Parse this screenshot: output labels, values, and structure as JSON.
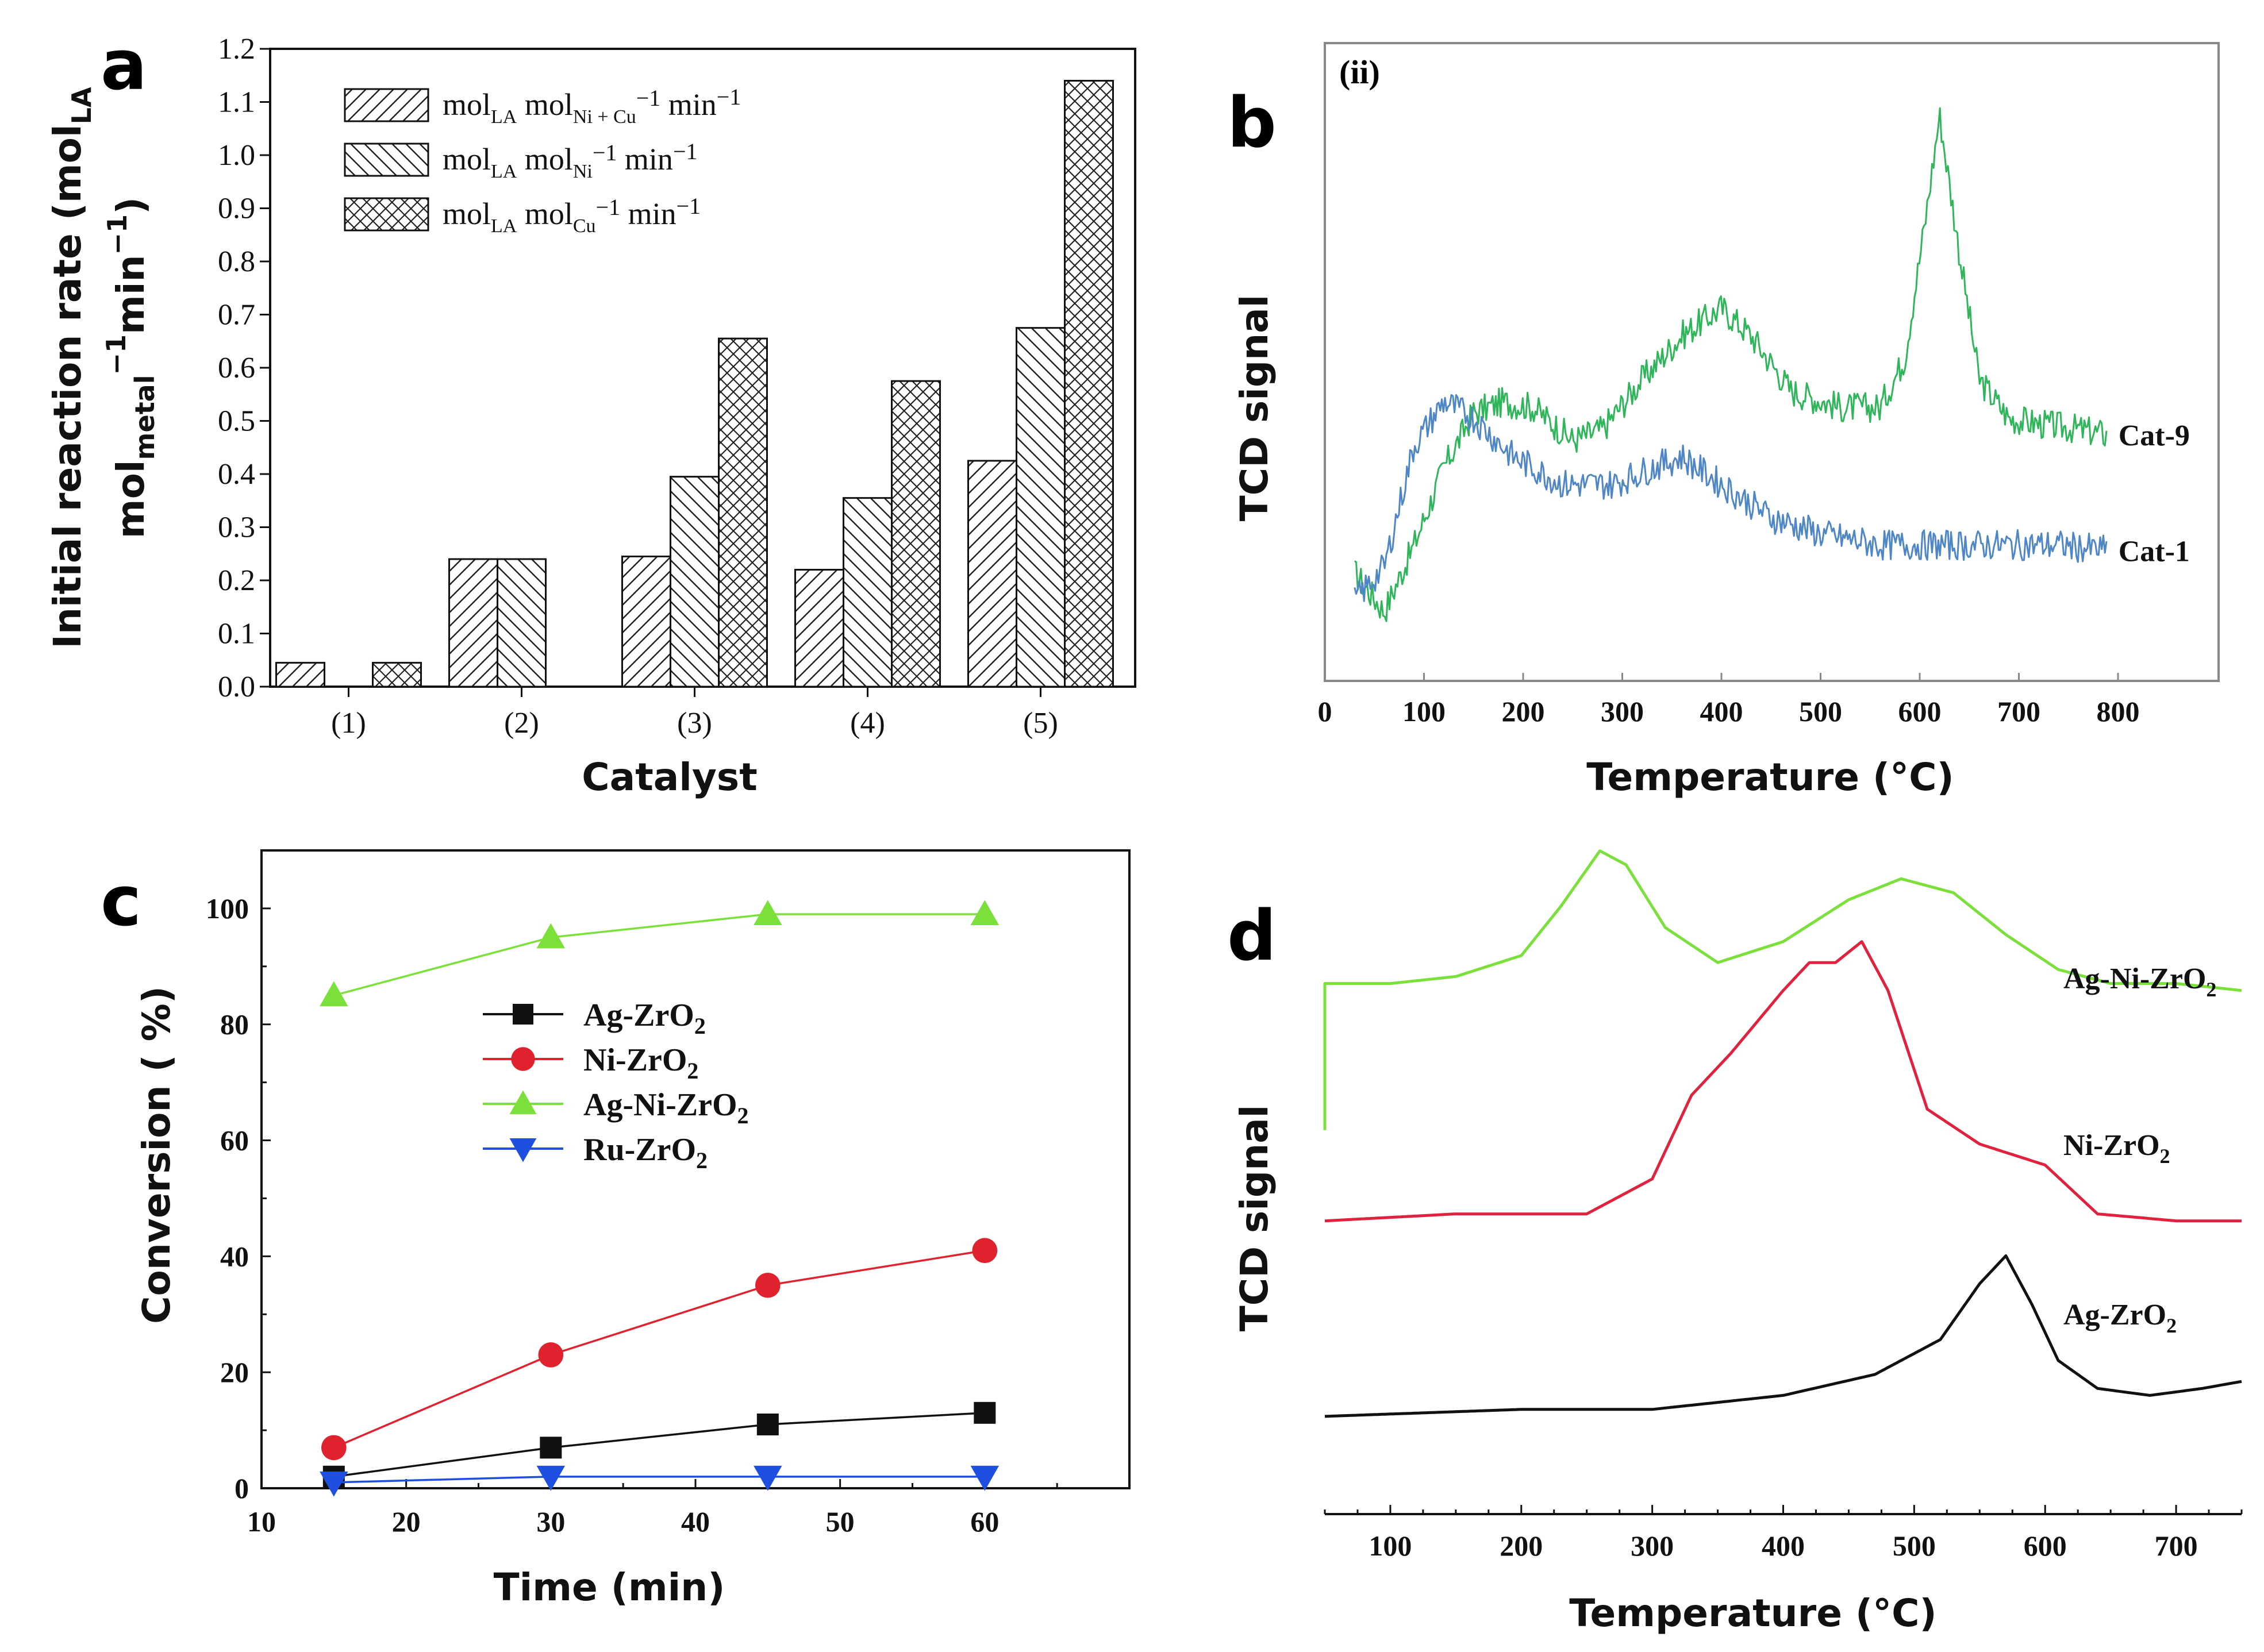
{
  "chart_data": [
    {
      "panel": "a",
      "type": "bar",
      "xlabel": "Catalyst",
      "ylabel_line1": "Initial reaction rate (mol",
      "ylabel_line1_sub": "LA",
      "ylabel_line2_a": "mol",
      "ylabel_line2_sub": "metal",
      "ylabel_line2_sup": "−1",
      "ylabel_line2_b": "min",
      "ylabel_line2_sup2": "−1",
      "ylabel_line2_c": ")",
      "ylim": [
        0,
        1.2
      ],
      "yticks": [
        "0.0",
        "0.1",
        "0.2",
        "0.3",
        "0.4",
        "0.5",
        "0.6",
        "0.7",
        "0.8",
        "0.9",
        "1.0",
        "1.1",
        "1.2"
      ],
      "categories": [
        "(1)",
        "(2)",
        "(3)",
        "(4)",
        "(5)"
      ],
      "series": [
        {
          "name": "mol_LA mol_Ni+Cu^-1 min^-1",
          "pattern": "fwd",
          "values": [
            0.045,
            0.24,
            0.245,
            0.22,
            0.425
          ]
        },
        {
          "name": "mol_LA mol_Ni^-1 min^-1",
          "pattern": "back",
          "values": [
            null,
            0.24,
            0.395,
            0.355,
            0.675
          ]
        },
        {
          "name": "mol_LA mol_Cu^-1 min^-1",
          "pattern": "cross",
          "values": [
            0.045,
            null,
            0.655,
            0.575,
            1.14
          ]
        }
      ],
      "legend": [
        {
          "base": "mol",
          "sub1": "LA",
          "mid": " mol",
          "sub2": "Ni + Cu",
          "tail": "−1 min−1"
        },
        {
          "base": "mol",
          "sub1": "LA",
          "mid": " mol",
          "sub2": "Ni",
          "tail": "−1 min−1"
        },
        {
          "base": "mol",
          "sub1": "LA",
          "mid": " mol",
          "sub2": "Cu",
          "tail": "−1 min−1"
        }
      ]
    },
    {
      "panel": "b",
      "type": "line",
      "inset_label": "(ii)",
      "xlabel": "Temperature (°C)",
      "ylabel": "TCD signal",
      "xlim": [
        0,
        900
      ],
      "xticks": [
        "0",
        "100",
        "200",
        "300",
        "400",
        "500",
        "600",
        "700",
        "800"
      ],
      "series": [
        {
          "name": "Cat-9",
          "color": "#2fb55a",
          "x": [
            30,
            60,
            90,
            120,
            150,
            180,
            210,
            250,
            280,
            320,
            360,
            400,
            430,
            470,
            520,
            560,
            585,
            605,
            620,
            640,
            660,
            690,
            720,
            760,
            790
          ],
          "y": [
            0.17,
            0.1,
            0.22,
            0.36,
            0.46,
            0.48,
            0.47,
            0.41,
            0.43,
            0.52,
            0.6,
            0.65,
            0.6,
            0.5,
            0.47,
            0.47,
            0.56,
            0.8,
            1.0,
            0.75,
            0.52,
            0.45,
            0.44,
            0.43,
            0.42
          ]
        },
        {
          "name": "Cat-1",
          "color": "#4f86c6",
          "x": [
            30,
            60,
            90,
            120,
            150,
            190,
            240,
            290,
            330,
            360,
            400,
            450,
            500,
            560,
            620,
            680,
            740,
            790
          ],
          "y": [
            0.12,
            0.18,
            0.4,
            0.48,
            0.45,
            0.38,
            0.33,
            0.33,
            0.36,
            0.38,
            0.33,
            0.27,
            0.24,
            0.22,
            0.22,
            0.22,
            0.22,
            0.21
          ]
        }
      ]
    },
    {
      "panel": "c",
      "type": "line",
      "xlabel": "Time (min)",
      "ylabel": "Conversion ( %)",
      "xlim": [
        10,
        70
      ],
      "ylim": [
        0,
        110
      ],
      "xticks": [
        "10",
        "20",
        "30",
        "40",
        "50",
        "60"
      ],
      "yticks": [
        "0",
        "20",
        "40",
        "60",
        "80",
        "100"
      ],
      "x": [
        15,
        30,
        45,
        60
      ],
      "series": [
        {
          "name": "Ag-ZrO",
          "sub": "2",
          "color": "#111111",
          "marker": "square",
          "values": [
            2,
            7,
            11,
            13
          ]
        },
        {
          "name": "Ni-ZrO",
          "sub": "2",
          "color": "#e0222e",
          "marker": "circle",
          "values": [
            7,
            23,
            35,
            41
          ]
        },
        {
          "name": "Ag-Ni-ZrO",
          "sub": "2",
          "color": "#7be03a",
          "marker": "triangle-up",
          "values": [
            85,
            95,
            99,
            99
          ]
        },
        {
          "name": "Ru-ZrO",
          "sub": "2",
          "color": "#1f4fe0",
          "marker": "triangle-down",
          "values": [
            1,
            2,
            2,
            2
          ]
        }
      ]
    },
    {
      "panel": "d",
      "type": "line",
      "xlabel": "Temperature (°C)",
      "ylabel": "TCD signal",
      "xlim": [
        50,
        750
      ],
      "xticks": [
        "100",
        "200",
        "300",
        "400",
        "500",
        "600",
        "700"
      ],
      "series": [
        {
          "name": "Ag-Ni-ZrO",
          "sub": "2",
          "color": "#7be03a",
          "x": [
            50,
            100,
            150,
            200,
            230,
            260,
            280,
            310,
            350,
            400,
            450,
            490,
            530,
            570,
            610,
            650,
            700,
            750
          ],
          "y": [
            0.76,
            0.76,
            0.77,
            0.8,
            0.87,
            0.95,
            0.93,
            0.84,
            0.79,
            0.82,
            0.88,
            0.91,
            0.89,
            0.83,
            0.78,
            0.76,
            0.76,
            0.75
          ]
        },
        {
          "name": "Ni-ZrO",
          "sub": "2",
          "color": "#e0223e",
          "x": [
            50,
            150,
            250,
            300,
            330,
            360,
            400,
            420,
            440,
            460,
            480,
            510,
            550,
            600,
            640,
            700,
            750
          ],
          "y": [
            0.42,
            0.43,
            0.43,
            0.48,
            0.6,
            0.66,
            0.75,
            0.79,
            0.79,
            0.82,
            0.75,
            0.58,
            0.53,
            0.5,
            0.43,
            0.42,
            0.42
          ]
        },
        {
          "name": "Ag-ZrO",
          "sub": "2",
          "color": "#111111",
          "x": [
            50,
            200,
            300,
            400,
            470,
            520,
            550,
            570,
            590,
            610,
            640,
            680,
            720,
            750
          ],
          "y": [
            0.14,
            0.15,
            0.15,
            0.17,
            0.2,
            0.25,
            0.33,
            0.37,
            0.3,
            0.22,
            0.18,
            0.17,
            0.18,
            0.19
          ]
        }
      ]
    }
  ],
  "panels": {
    "a": "a",
    "b": "b",
    "c": "c",
    "d": "d"
  }
}
